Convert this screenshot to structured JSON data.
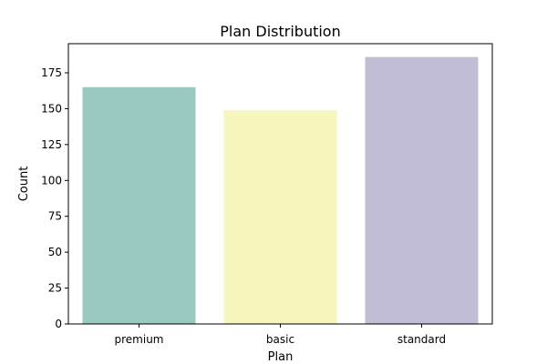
{
  "chart_data": {
    "type": "bar",
    "title": "Plan Distribution",
    "xlabel": "Plan",
    "ylabel": "Count",
    "categories": [
      "premium",
      "basic",
      "standard"
    ],
    "values": [
      165,
      149,
      186
    ],
    "colors": [
      "#99c9c0",
      "#f7f6bc",
      "#c1bdd6"
    ],
    "ylim": [
      0,
      195.3
    ],
    "yticks": [
      0,
      25,
      50,
      75,
      100,
      125,
      150,
      175
    ],
    "grid": false,
    "legend": "none"
  }
}
